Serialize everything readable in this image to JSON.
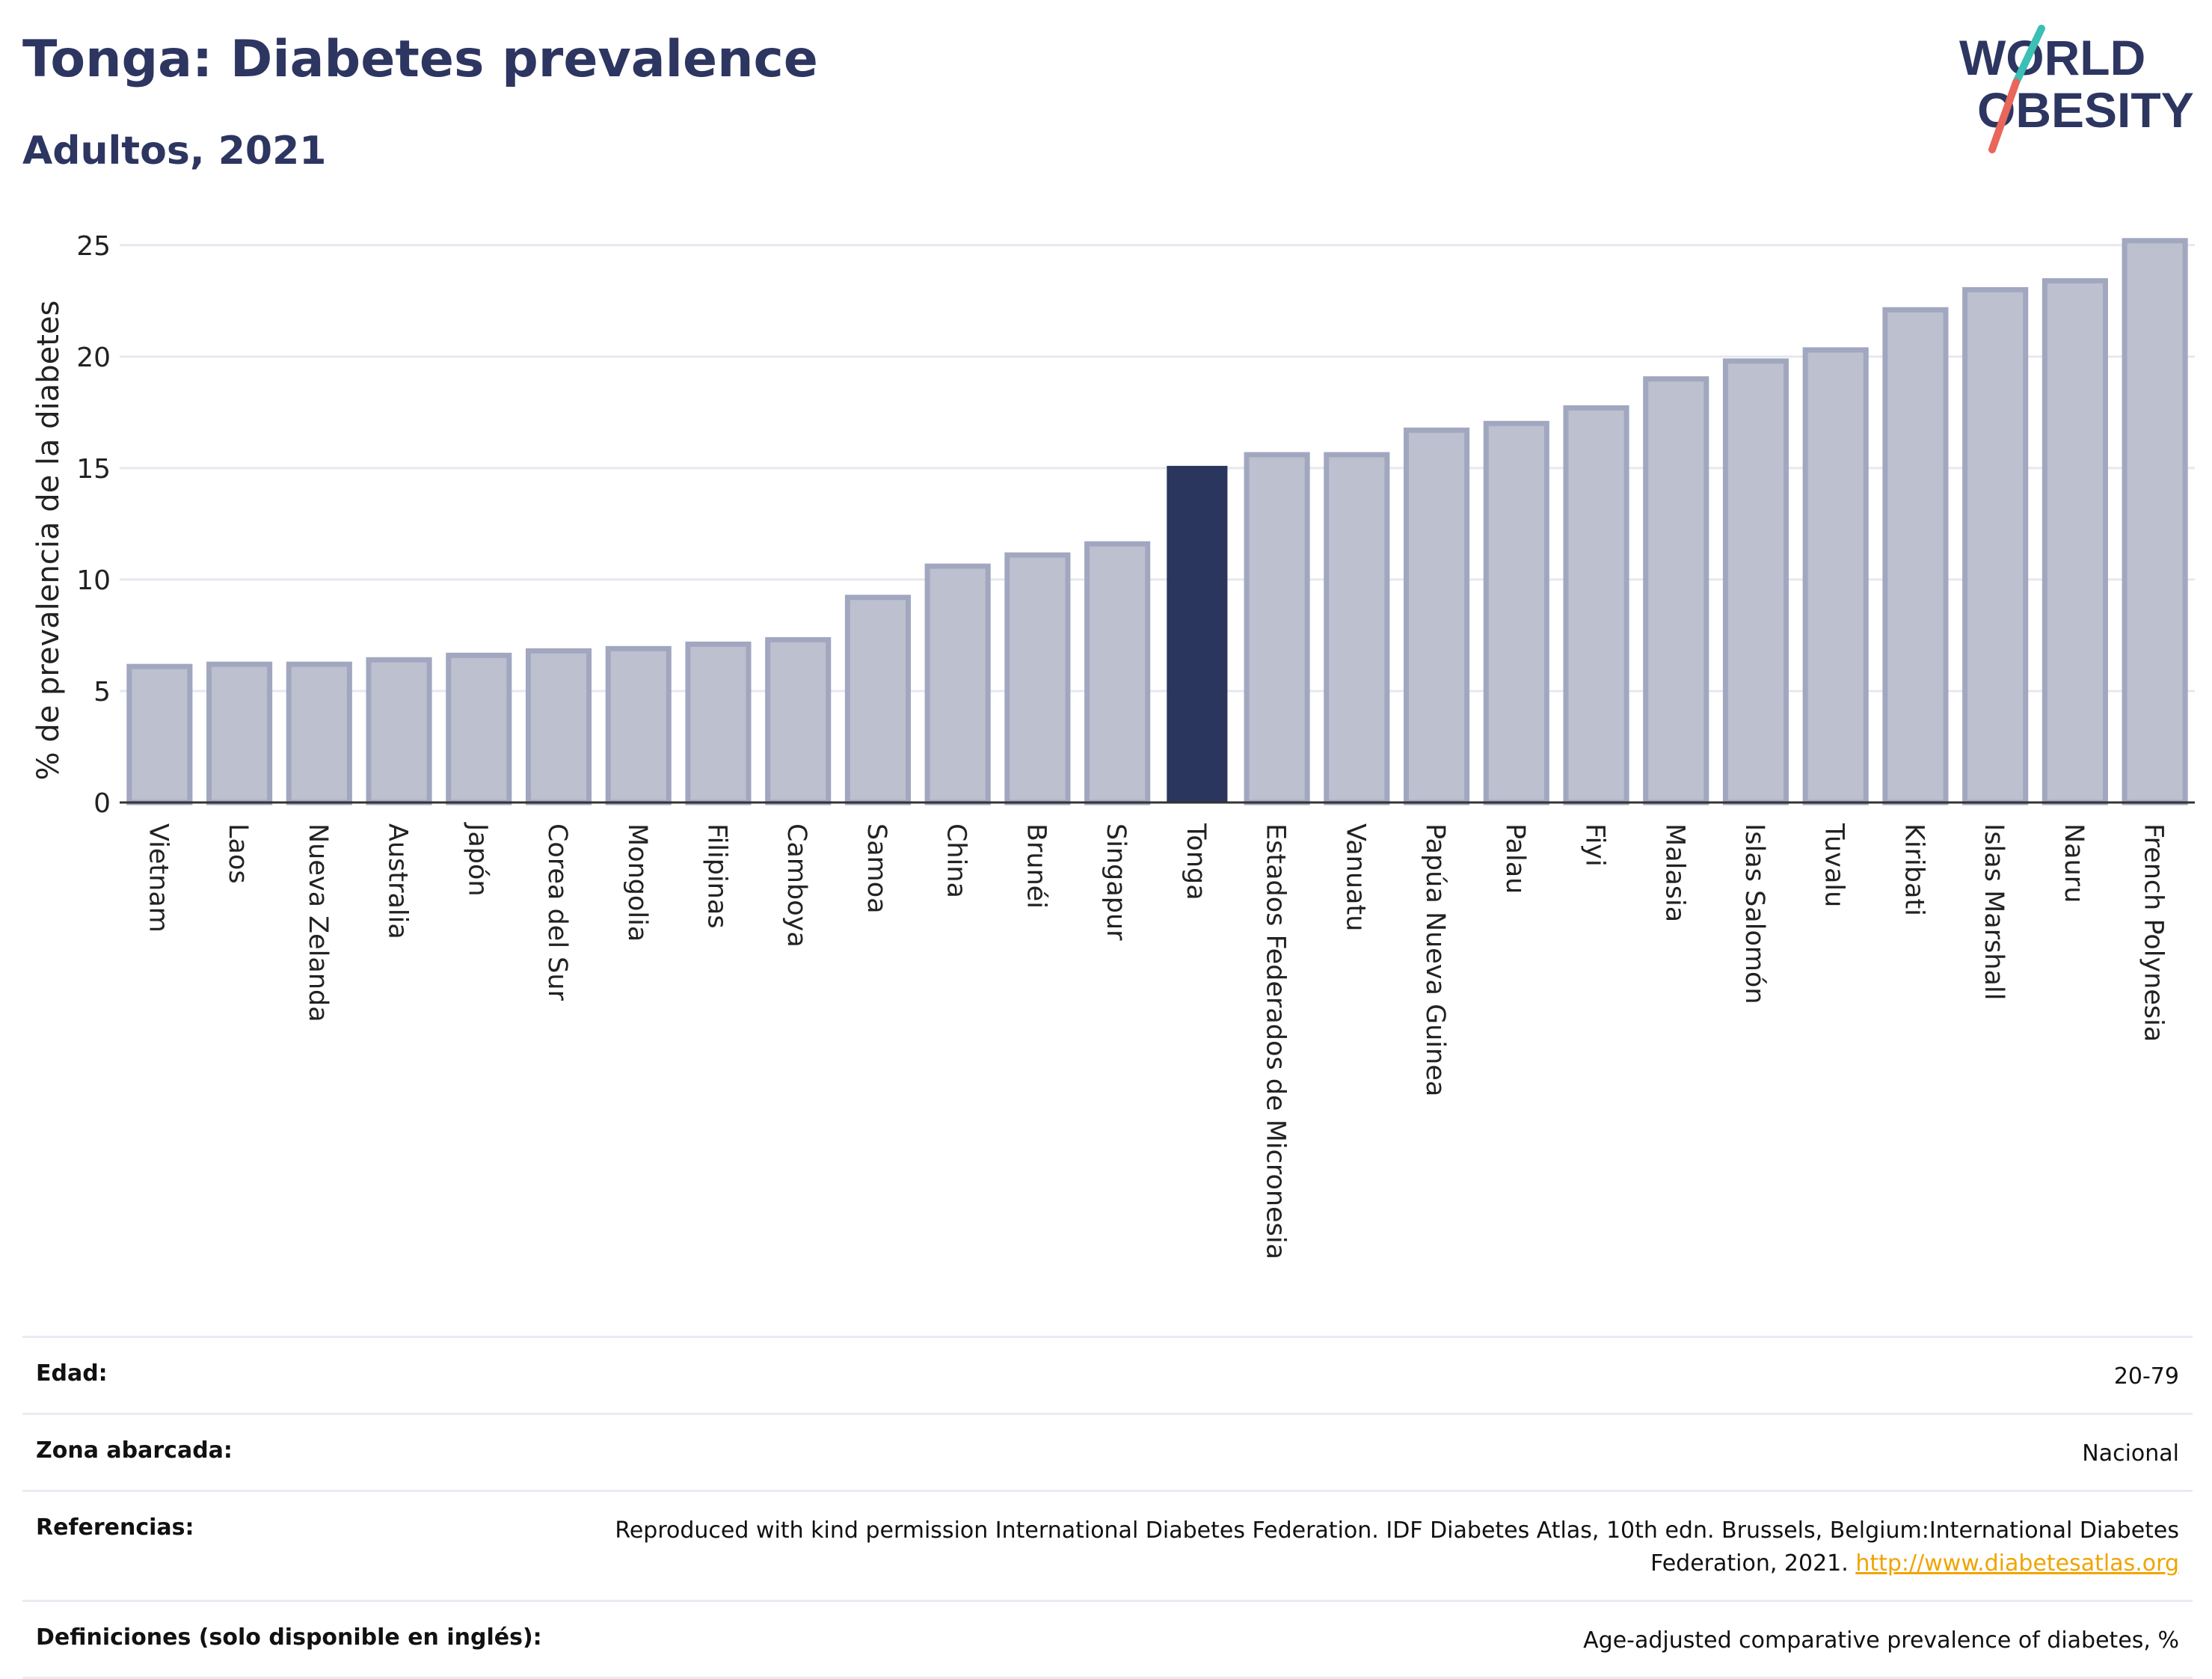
{
  "header": {
    "title": "Tonga: Diabetes prevalence",
    "subtitle": "Adultos, 2021"
  },
  "logo": {
    "line1": "WORLD",
    "line2": "OBESITY",
    "colors": {
      "text": "#2d3561",
      "slash_top": "#3cbfb4",
      "slash_bottom": "#e8665a"
    }
  },
  "colors": {
    "bar_default": "#bcc0cf",
    "bar_border": "#a2a7c0",
    "bar_highlight": "#2b365f",
    "grid": "#e6e8ef",
    "axis": "#333333"
  },
  "chart_data": {
    "type": "bar",
    "ylabel": "% de prevalencia de la diabetes",
    "ylim": [
      0,
      26.2
    ],
    "yticks": [
      0,
      5,
      10,
      15,
      20,
      25
    ],
    "grid": true,
    "highlight": "Tonga",
    "categories": [
      "Vietnam",
      "Laos",
      "Nueva Zelanda",
      "Australia",
      "Japón",
      "Corea del Sur",
      "Mongolia",
      "Filipinas",
      "Camboya",
      "Samoa",
      "China",
      "Brunéi",
      "Singapur",
      "Tonga",
      "Estados Federados de Micronesia",
      "Vanuatu",
      "Papúa Nueva Guinea",
      "Palau",
      "Fiyi",
      "Malasia",
      "Islas Salomón",
      "Tuvalu",
      "Kiribati",
      "Islas Marshall",
      "Nauru",
      "French Polynesia"
    ],
    "values": [
      6.1,
      6.2,
      6.2,
      6.4,
      6.6,
      6.8,
      6.9,
      7.1,
      7.3,
      9.2,
      10.6,
      11.1,
      11.6,
      15.1,
      15.6,
      15.6,
      16.7,
      17.0,
      17.7,
      19.0,
      19.8,
      20.3,
      22.1,
      23.0,
      23.4,
      25.2
    ]
  },
  "info": {
    "rows": [
      {
        "label": "Edad:",
        "value": "20-79"
      },
      {
        "label": "Zona abarcada:",
        "value": "Nacional"
      },
      {
        "label": "Referencias:",
        "value": "Reproduced with kind permission International Diabetes Federation.  IDF Diabetes Atlas, 10th edn. Brussels, Belgium:International Diabetes Federation, 2021.",
        "link": "http://www.diabetesatlas.org"
      },
      {
        "label": "Definiciones (solo disponible en inglés):",
        "value": "Age-adjusted comparative prevalence of diabetes, %"
      }
    ]
  }
}
